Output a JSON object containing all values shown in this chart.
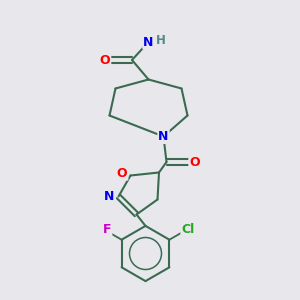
{
  "bg_color": "#e8e8ec",
  "bond_color": "#3a6b50",
  "atom_colors": {
    "O": "#ff0000",
    "N": "#0000ee",
    "F": "#cc00cc",
    "Cl": "#22aa22",
    "H": "#558888",
    "C": "#3a6b50"
  },
  "figsize": [
    3.0,
    3.0
  ],
  "dpi": 100
}
